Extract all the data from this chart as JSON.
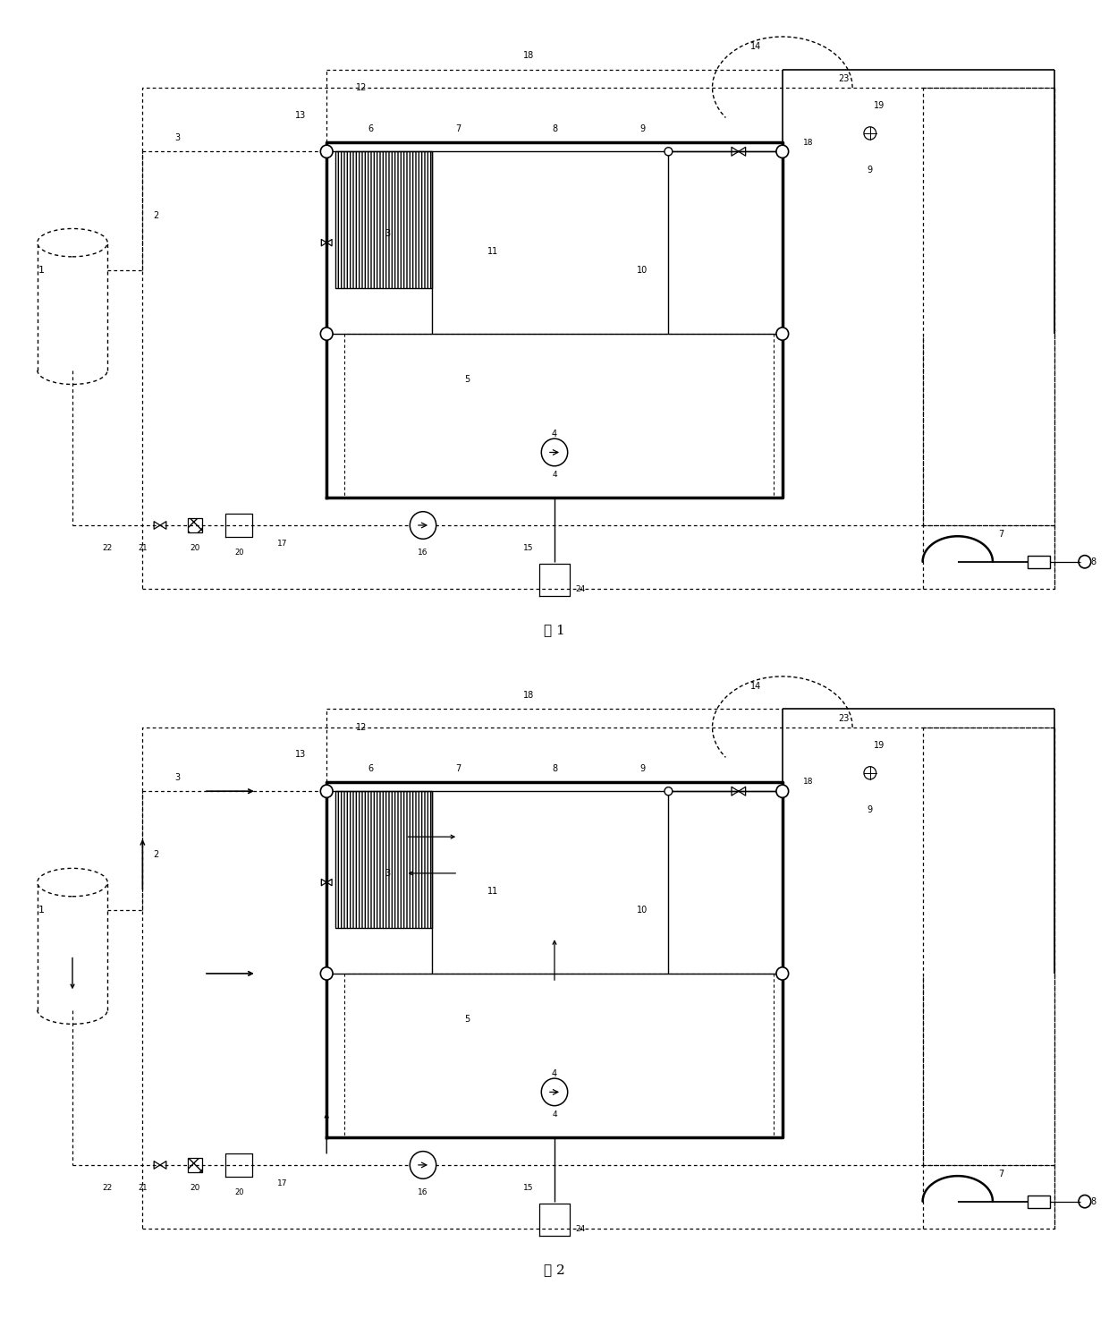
{
  "bg_color": "#ffffff",
  "fig1_title": "图 1",
  "fig2_title": "图 2",
  "figsize": [
    12.4,
    14.74
  ],
  "dpi": 100
}
